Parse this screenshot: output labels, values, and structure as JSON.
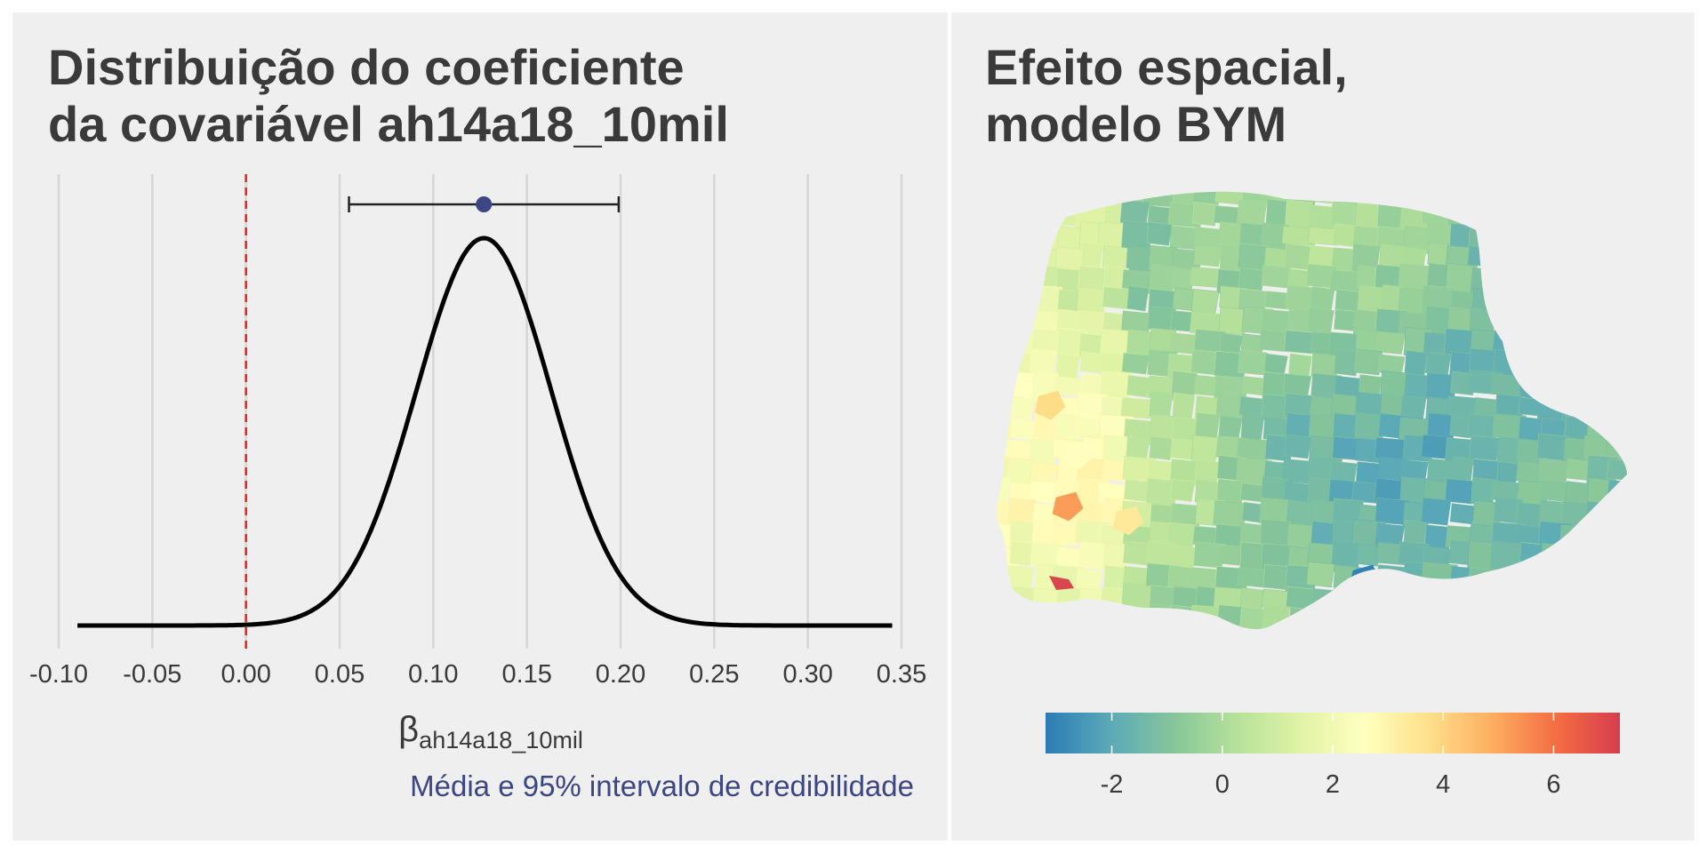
{
  "colors": {
    "background": "#efefef",
    "curve": "#000000",
    "zero_line": "#e8231c",
    "point": "#3c4683",
    "caption": "#3c4683",
    "grid": "#d6d6d6",
    "title": "#3a3a3a"
  },
  "chart_data": [
    {
      "type": "line",
      "title_lines": [
        "Distribuição do coeficiente",
        "da covariável ah14a18_10mil"
      ],
      "xlabel_symbol": "β",
      "xlabel_subscript": "ah14a18_10mil",
      "caption": "Média e 95% intervalo de credibilidade",
      "x_ticks": [
        -0.1,
        -0.05,
        0.0,
        0.05,
        0.1,
        0.15,
        0.2,
        0.25,
        0.3,
        0.35
      ],
      "x_tick_labels": [
        "-0.10",
        "-0.05",
        "0.00",
        "0.05",
        "0.10",
        "0.15",
        "0.20",
        "0.25",
        "0.30",
        "0.35"
      ],
      "xlim": [
        -0.1,
        0.35
      ],
      "grid": "vertical",
      "reference_line": {
        "x": 0.0,
        "style": "dashed"
      },
      "density": {
        "mean": 0.127,
        "sd": 0.036,
        "x_range": [
          -0.09,
          0.345
        ]
      },
      "mean": 0.127,
      "ci95": [
        0.055,
        0.199
      ]
    },
    {
      "type": "heatmap",
      "title_lines": [
        "Efeito espacial,",
        "modelo BYM"
      ],
      "legend_ticks": [
        -2,
        0,
        2,
        4,
        6
      ],
      "legend_range": [
        -3.2,
        7.2
      ],
      "legend_placement": "bottom",
      "colorscale": [
        "#2c7bb6",
        "#5aa9b8",
        "#86c59a",
        "#b6e19a",
        "#e0f3a5",
        "#ffffbf",
        "#fee08b",
        "#fdae61",
        "#f46d43",
        "#d53e4f"
      ]
    }
  ]
}
